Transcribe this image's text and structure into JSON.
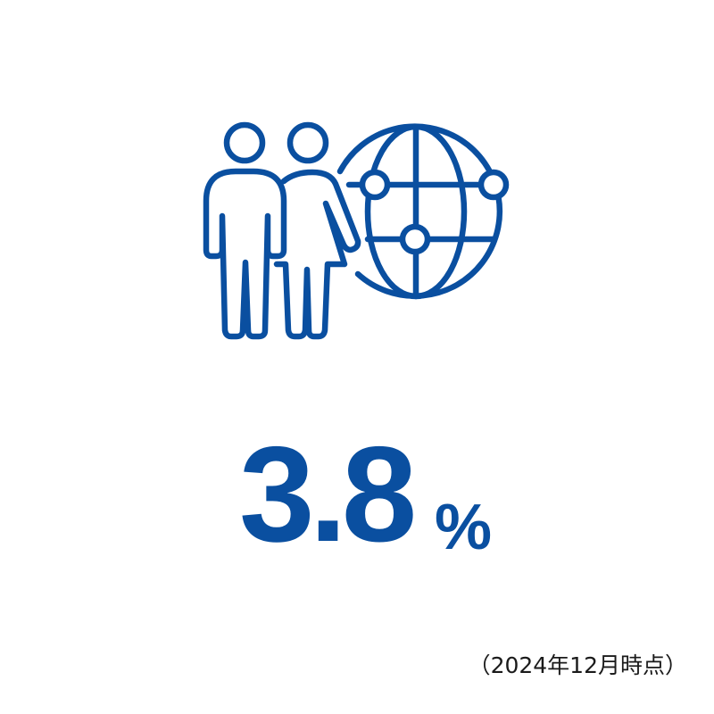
{
  "colors": {
    "accent": "#0a4fa0",
    "note_text": "#1a1a1a"
  },
  "icon": {
    "name": "people-globe-icon"
  },
  "stat": {
    "value": "3.8",
    "unit": "%"
  },
  "note": "（2024年12月時点）"
}
